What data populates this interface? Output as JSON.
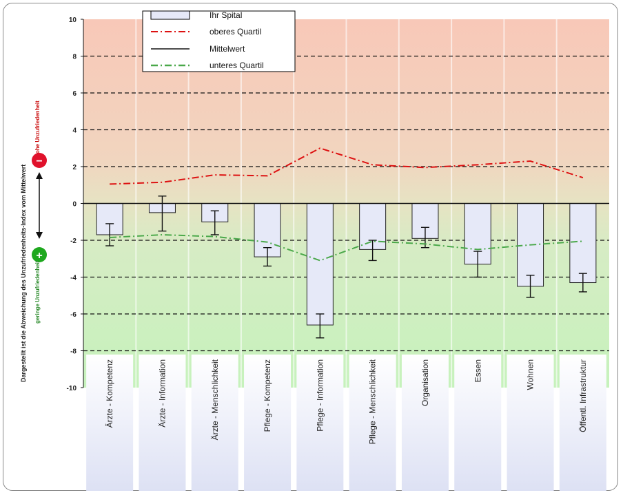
{
  "chart_data": {
    "type": "bar",
    "ylabel": "Dargestellt ist die Abweichung des Unzufriedenheits-Index vom Mittelwert",
    "ylim": [
      -10,
      10
    ],
    "yticks": [
      10,
      8,
      6,
      4,
      2,
      0,
      -2,
      -4,
      -6,
      -8,
      -10
    ],
    "grid": "horizontal dashed",
    "legend_position": "top-left",
    "categories": [
      "Ärzte - Kompetenz",
      "Ärzte - Information",
      "Ärzte - Menschlichkeit",
      "Pflege - Kompetenz",
      "Pflege - Information",
      "Pflege - Menschlichkeit",
      "Organisation",
      "Essen",
      "Wohnen",
      "Öffentl. Infrastruktur"
    ],
    "series": [
      {
        "name": "Ihr Spital",
        "type": "bar",
        "color": "#e6e9f8",
        "values": [
          -1.7,
          -0.5,
          -1.0,
          -2.9,
          -6.6,
          -2.5,
          -1.9,
          -3.3,
          -4.5,
          -4.3
        ],
        "error_low": [
          -2.3,
          -1.5,
          -1.7,
          -3.4,
          -7.3,
          -3.1,
          -2.4,
          -4.0,
          -5.1,
          -4.8
        ],
        "error_high": [
          -1.1,
          0.4,
          -0.4,
          -2.4,
          -6.0,
          -2.0,
          -1.3,
          -2.6,
          -3.9,
          -3.8
        ]
      },
      {
        "name": "oberes Quartil",
        "type": "line",
        "style": "dash-dot",
        "color": "#dd1111",
        "values": [
          1.05,
          1.15,
          1.55,
          1.5,
          3.0,
          2.1,
          1.95,
          2.1,
          2.3,
          1.4
        ]
      },
      {
        "name": "Mittelwert",
        "type": "line",
        "style": "solid",
        "color": "#111111",
        "values": [
          0,
          0,
          0,
          0,
          0,
          0,
          0,
          0,
          0,
          0
        ]
      },
      {
        "name": "unteres Quartil",
        "type": "line",
        "style": "dash-dot",
        "color": "#4aa84a",
        "values": [
          -1.85,
          -1.7,
          -1.8,
          -2.1,
          -3.1,
          -2.05,
          -2.2,
          -2.5,
          -2.25,
          -2.05
        ]
      }
    ],
    "annotations": {
      "top_note": "hohe Unzufriedenheit",
      "bottom_note": "geringe Unzufriedenheit",
      "top_symbol": "−",
      "bottom_symbol": "+"
    },
    "colors": {
      "top_band": "#f8cdbc",
      "mid_band": "#e9e3c2",
      "bottom_band": "#c8f0bd",
      "label_band": "#e3e6f6",
      "minus_circle": "#e0112b",
      "plus_circle": "#1ea81e"
    }
  }
}
